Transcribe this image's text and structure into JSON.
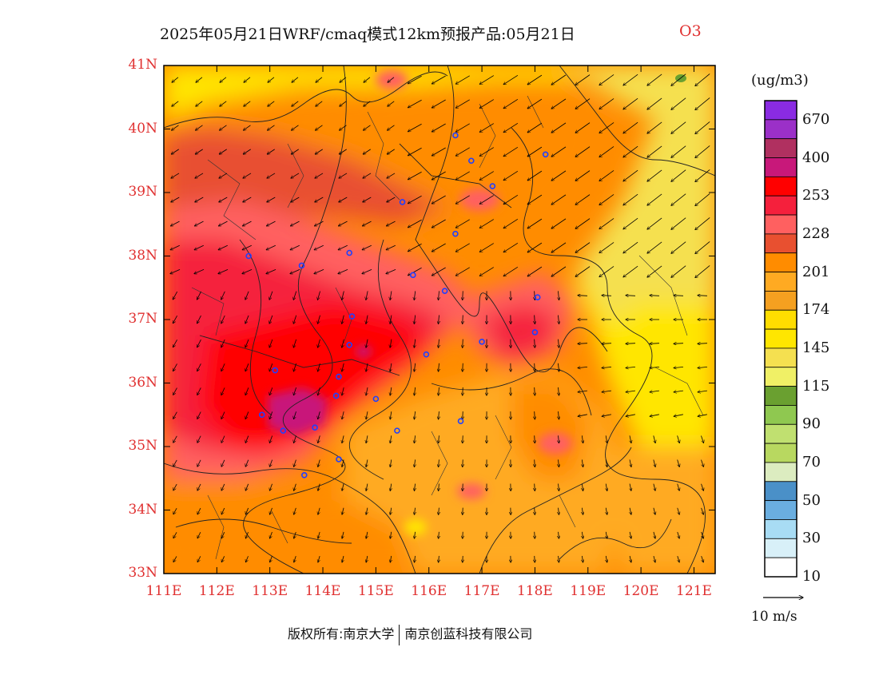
{
  "title": {
    "main": "2025年05月21日WRF/cmaq模式12km预报产品:05月21日",
    "species": "O3"
  },
  "axes": {
    "lat_labels": [
      "41N",
      "40N",
      "39N",
      "38N",
      "37N",
      "36N",
      "35N",
      "34N",
      "33N"
    ],
    "lon_labels": [
      "111E",
      "112E",
      "113E",
      "114E",
      "115E",
      "116E",
      "117E",
      "118E",
      "119E",
      "120E",
      "121E"
    ],
    "lat_range": [
      33,
      41
    ],
    "lon_range": [
      111,
      121.4
    ]
  },
  "colorbar": {
    "units": "(ug/m3)",
    "labels": [
      "670",
      "400",
      "253",
      "228",
      "201",
      "174",
      "145",
      "115",
      "90",
      "70",
      "50",
      "30",
      "10"
    ],
    "colors": [
      "#8a2be2",
      "#9b30c8",
      "#b03060",
      "#c8187a",
      "#ff0000",
      "#f5203c",
      "#ff6060",
      "#e85030",
      "#ff8c00",
      "#ffaa22",
      "#f5a020",
      "#ffdd00",
      "#ffe600",
      "#f5e050",
      "#f0f066",
      "#6aa030",
      "#8fc850",
      "#c0e070",
      "#b8d860",
      "#dcecc0",
      "#4a90c8",
      "#6aaee0",
      "#a8dcf4",
      "#d8f0f8",
      "#ffffff"
    ]
  },
  "vector_scale": {
    "label": "10 m/s"
  },
  "footer": {
    "left": "版权所有:南京大学",
    "right": "南京创蓝科技有限公司"
  },
  "stations": [
    [
      116.5,
      39.9
    ],
    [
      116.8,
      39.5
    ],
    [
      118.2,
      39.6
    ],
    [
      117.2,
      39.1
    ],
    [
      115.5,
      38.85
    ],
    [
      112.6,
      38.0
    ],
    [
      113.6,
      37.85
    ],
    [
      114.5,
      38.05
    ],
    [
      115.7,
      37.7
    ],
    [
      116.5,
      38.35
    ],
    [
      116.3,
      37.45
    ],
    [
      118.05,
      37.35
    ],
    [
      114.55,
      37.05
    ],
    [
      117.0,
      36.65
    ],
    [
      118.0,
      36.8
    ],
    [
      115.95,
      36.45
    ],
    [
      114.5,
      36.6
    ],
    [
      114.3,
      36.1
    ],
    [
      113.1,
      36.2
    ],
    [
      114.25,
      35.8
    ],
    [
      115.0,
      35.75
    ],
    [
      112.85,
      35.5
    ],
    [
      113.25,
      35.25
    ],
    [
      113.85,
      35.3
    ],
    [
      115.4,
      35.25
    ],
    [
      116.6,
      35.4
    ],
    [
      114.3,
      34.8
    ],
    [
      113.65,
      34.55
    ]
  ]
}
